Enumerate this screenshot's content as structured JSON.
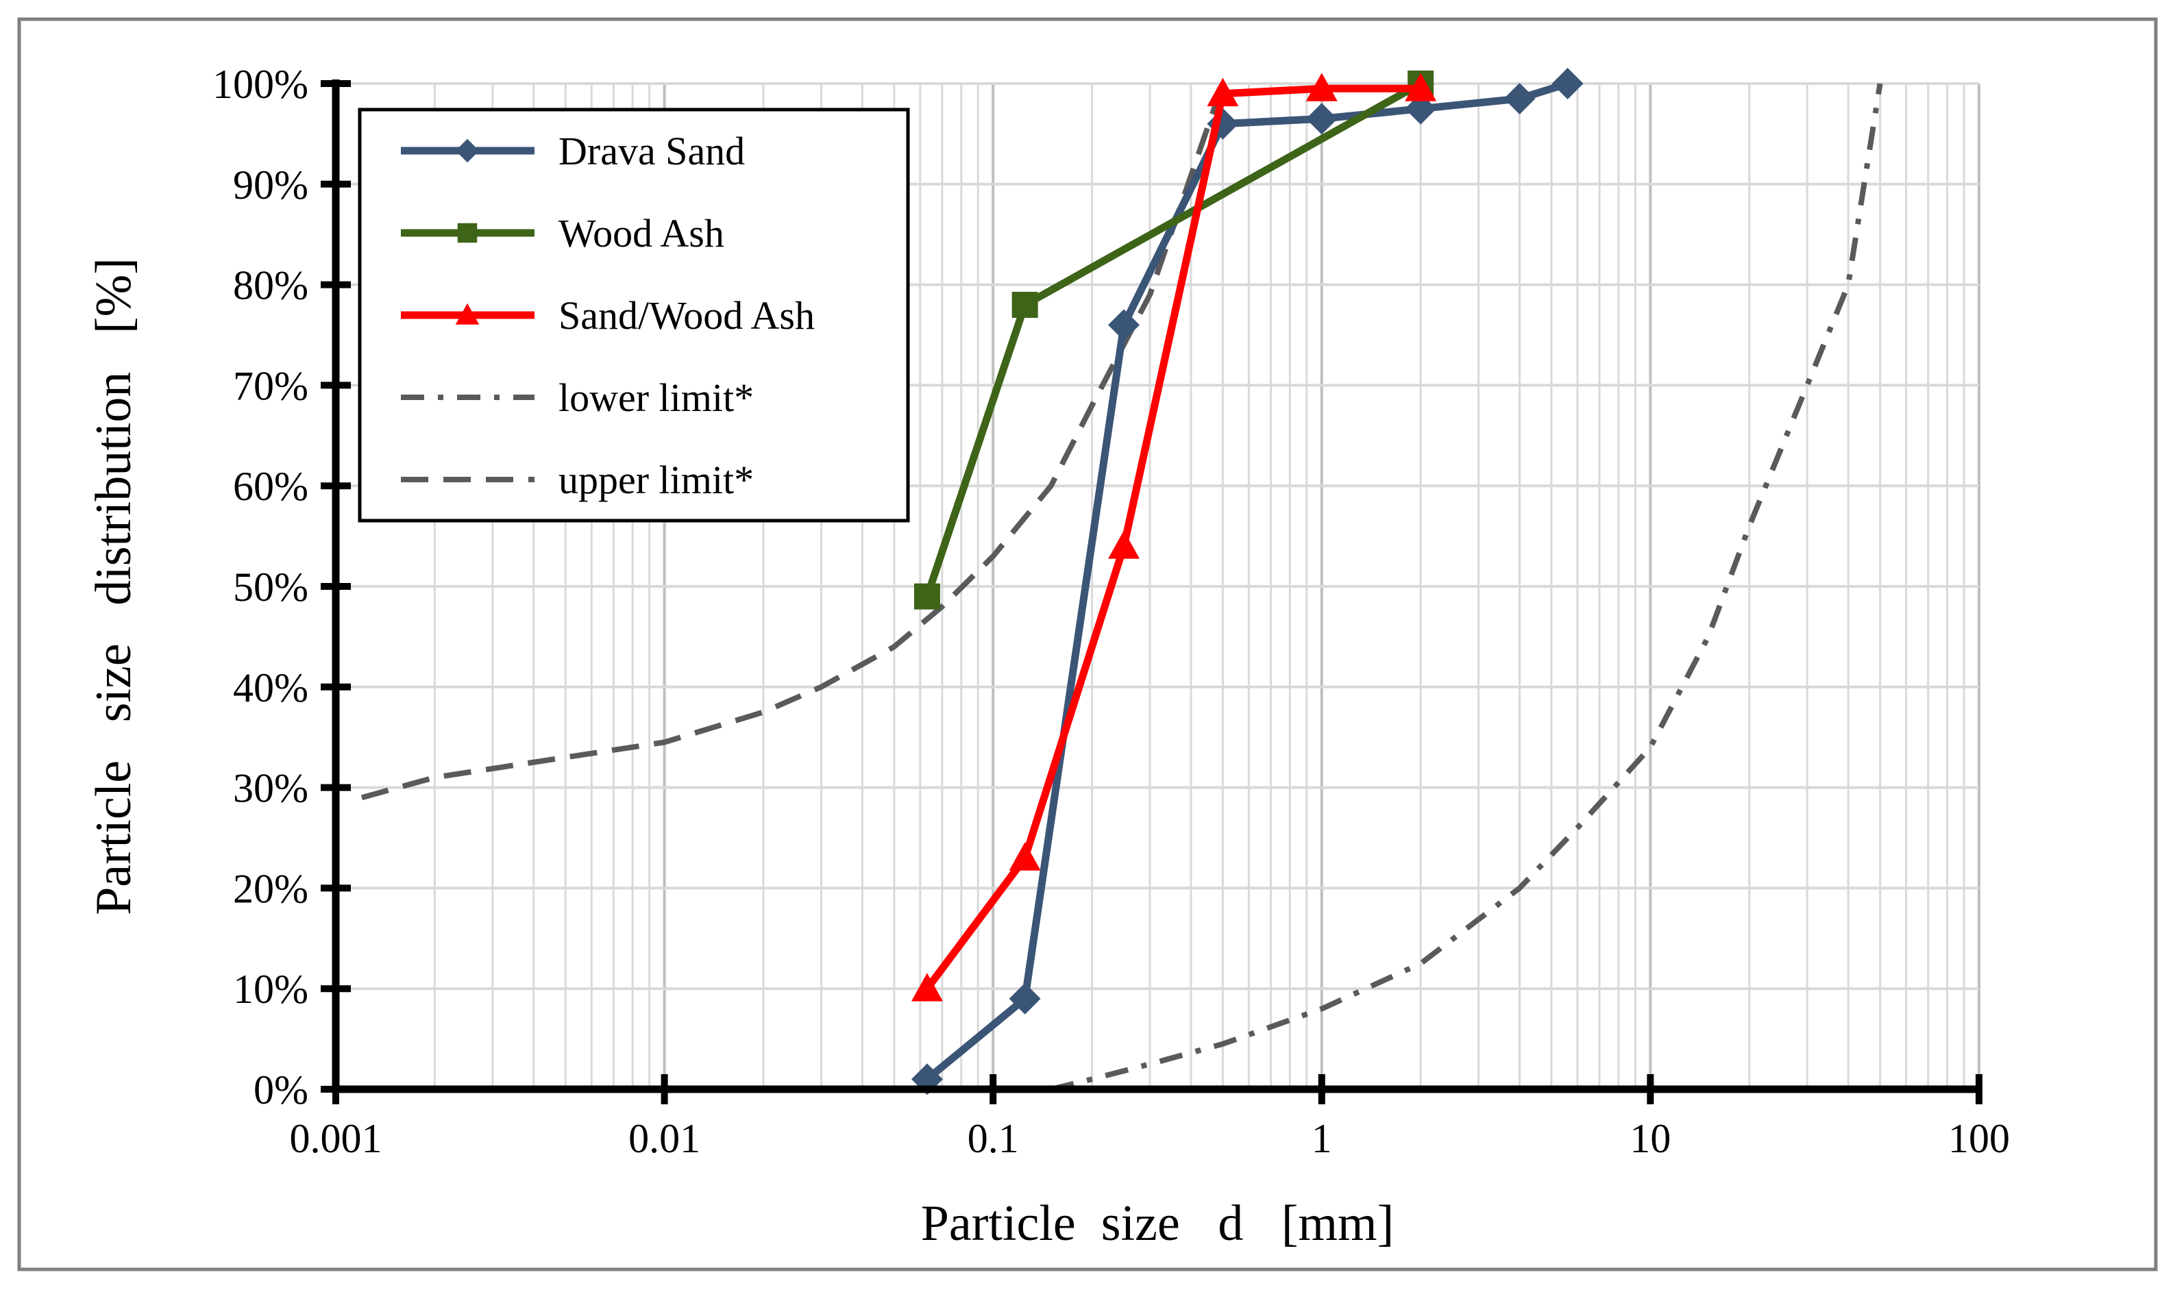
{
  "chart_data": {
    "type": "line",
    "title": "",
    "xlabel": "Particle  size   d   [mm]",
    "ylabel": "Particle   size   distribution   [%]",
    "x_scale": "log",
    "xlim": [
      0.001,
      100
    ],
    "ylim": [
      0,
      100
    ],
    "x_ticks": [
      0.001,
      0.01,
      0.1,
      1,
      10,
      100
    ],
    "x_tick_labels": [
      "0.001",
      "0.01",
      "0.1",
      "1",
      "10",
      "100"
    ],
    "y_ticks": [
      0,
      10,
      20,
      30,
      40,
      50,
      60,
      70,
      80,
      90,
      100
    ],
    "y_tick_labels": [
      "0%",
      "10%",
      "20%",
      "30%",
      "40%",
      "50%",
      "60%",
      "70%",
      "80%",
      "90%",
      "100%"
    ],
    "grid": true,
    "legend_position": "top-left",
    "series": [
      {
        "name": "Drava Sand",
        "color": "#3b5577",
        "style": "solid",
        "marker": "diamond",
        "x": [
          0.063,
          0.125,
          0.25,
          0.5,
          1,
          2,
          4,
          5.6
        ],
        "y": [
          1,
          9,
          76,
          96,
          96.5,
          97.5,
          98.5,
          100
        ]
      },
      {
        "name": "Wood Ash",
        "color": "#3e6418",
        "style": "solid",
        "marker": "square",
        "x": [
          0.063,
          0.125,
          2
        ],
        "y": [
          49,
          78,
          100
        ]
      },
      {
        "name": "Sand/Wood Ash",
        "color": "#ff0000",
        "style": "solid",
        "marker": "triangle",
        "x": [
          0.063,
          0.125,
          0.25,
          0.5,
          1,
          2
        ],
        "y": [
          10,
          23,
          54,
          99,
          99.5,
          99.5
        ]
      },
      {
        "name": "lower limit*",
        "color": "#5a5a5a",
        "style": "dashdot",
        "marker": "none",
        "x": [
          0.15,
          0.2,
          0.3,
          0.5,
          1,
          2,
          4,
          6,
          10,
          15,
          20,
          30,
          40,
          50
        ],
        "y": [
          0,
          1,
          2.5,
          4.5,
          8,
          12.5,
          20,
          26,
          34,
          45,
          56,
          70,
          80,
          100
        ]
      },
      {
        "name": "upper limit*",
        "color": "#5a5a5a",
        "style": "dashed",
        "marker": "none",
        "x": [
          0.0012,
          0.002,
          0.005,
          0.01,
          0.02,
          0.03,
          0.05,
          0.07,
          0.1,
          0.15,
          0.2,
          0.3,
          0.5
        ],
        "y": [
          29,
          31,
          33,
          34.5,
          37.5,
          40,
          44,
          48,
          53,
          60,
          68,
          79,
          100
        ]
      }
    ]
  }
}
